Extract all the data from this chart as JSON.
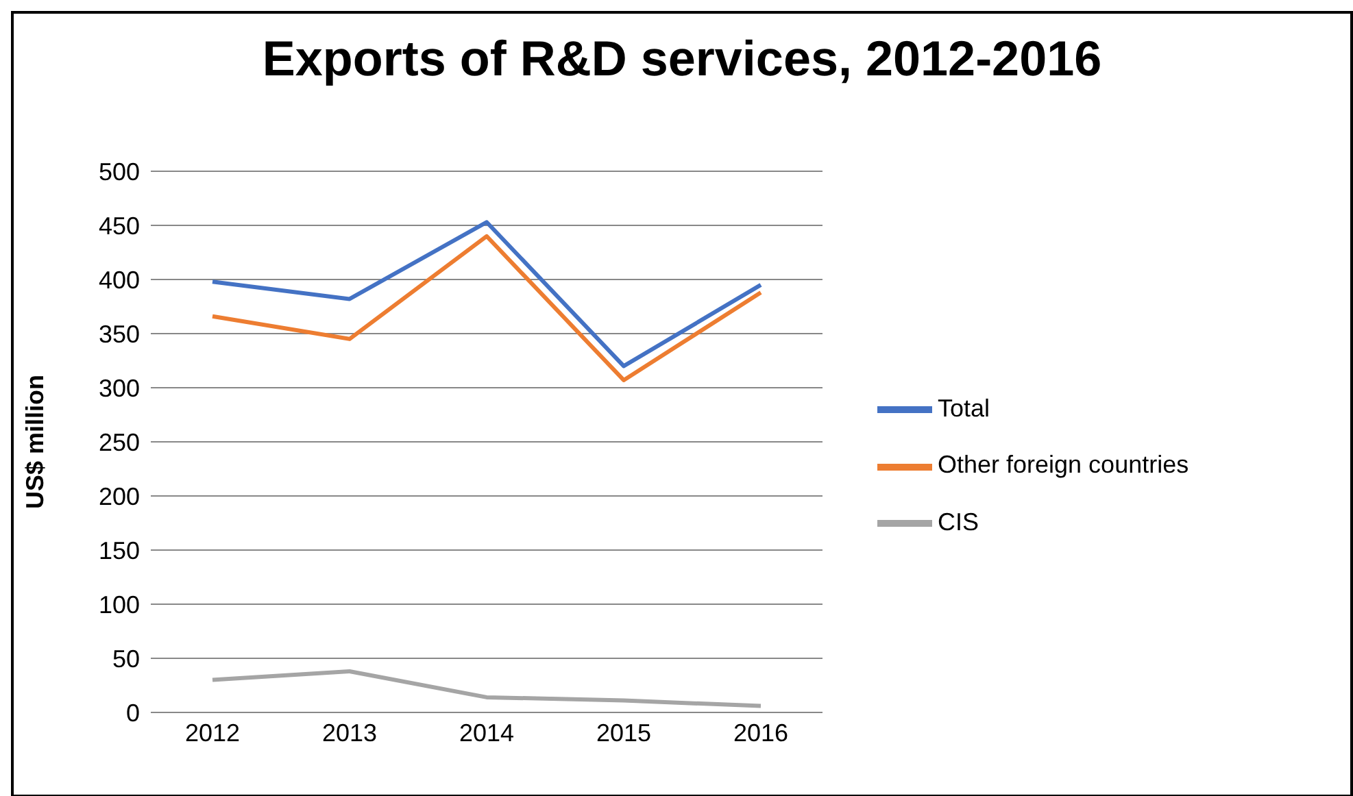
{
  "chart_data": {
    "type": "line",
    "title": "Exports of R&D services, 2012-2016",
    "ylabel": "US$ million",
    "categories": [
      "2012",
      "2013",
      "2014",
      "2015",
      "2016"
    ],
    "series": [
      {
        "name": "Total",
        "color": "#4472c4",
        "values": [
          398,
          382,
          453,
          320,
          395
        ]
      },
      {
        "name": "Other foreign countries",
        "color": "#ed7d31",
        "values": [
          366,
          345,
          440,
          307,
          388
        ]
      },
      {
        "name": "CIS",
        "color": "#a5a5a5",
        "values": [
          30,
          38,
          14,
          11,
          6
        ]
      }
    ],
    "ylim": [
      0,
      500
    ],
    "yticks": [
      0,
      50,
      100,
      150,
      200,
      250,
      300,
      350,
      400,
      450,
      500
    ],
    "grid": "y",
    "legend": "right",
    "marker": "none",
    "line_style": "solid"
  }
}
